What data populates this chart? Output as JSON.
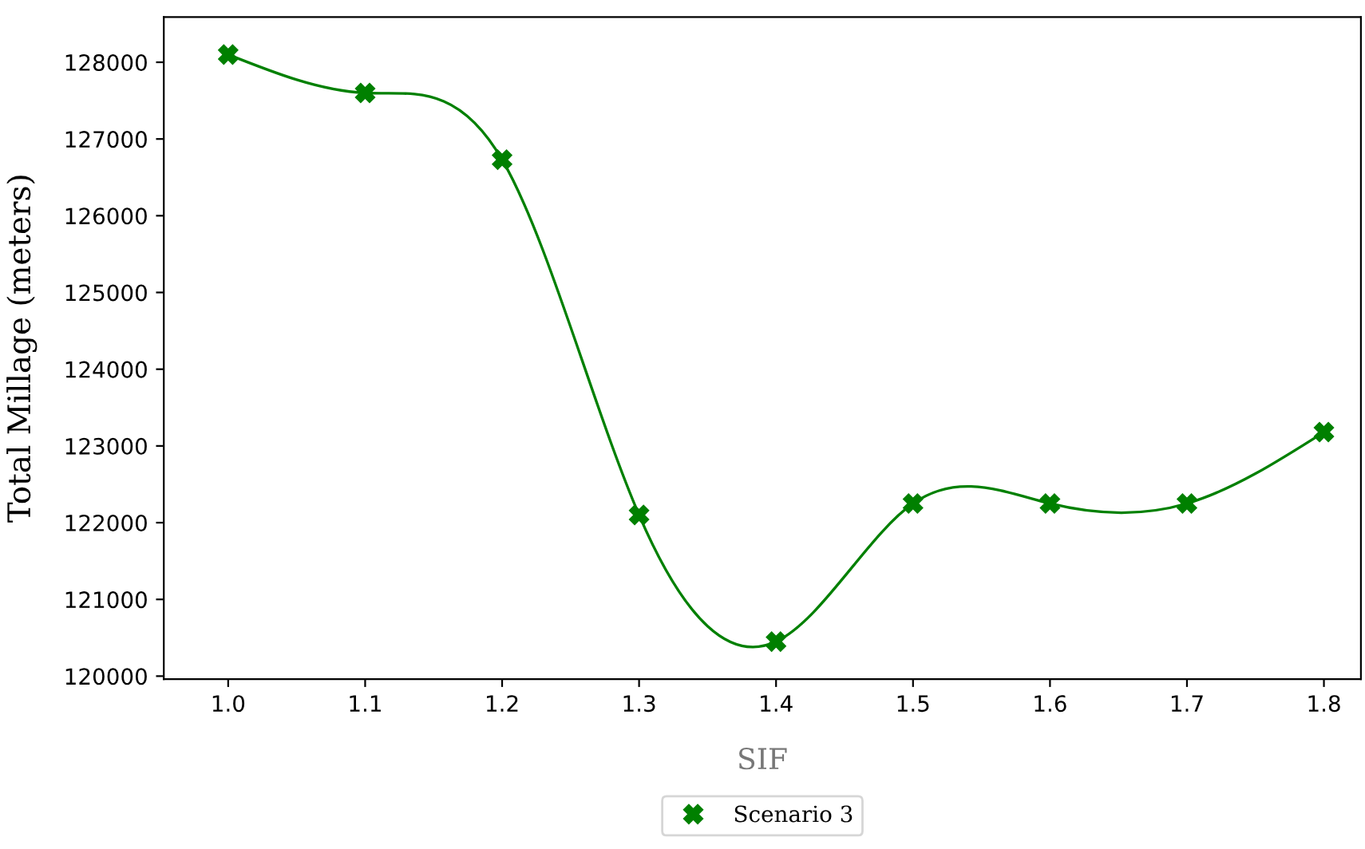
{
  "chart_data": {
    "type": "line",
    "xlabel": "SIF",
    "ylabel": "Total Millage (meters)",
    "x": [
      1.0,
      1.1,
      1.2,
      1.3,
      1.4,
      1.5,
      1.6,
      1.7,
      1.8
    ],
    "series": [
      {
        "name": "Scenario 3",
        "color": "#008000",
        "values": [
          128100,
          127600,
          126730,
          122100,
          120450,
          122250,
          122250,
          122250,
          123180
        ]
      }
    ],
    "xlim": [
      0.953,
      1.827
    ],
    "xticks": [
      {
        "value": 1.0,
        "label": "1.0"
      },
      {
        "value": 1.1,
        "label": "1.1"
      },
      {
        "value": 1.2,
        "label": "1.2"
      },
      {
        "value": 1.3,
        "label": "1.3"
      },
      {
        "value": 1.4,
        "label": "1.4"
      },
      {
        "value": 1.5,
        "label": "1.5"
      },
      {
        "value": 1.6,
        "label": "1.6"
      },
      {
        "value": 1.7,
        "label": "1.7"
      },
      {
        "value": 1.8,
        "label": "1.8"
      }
    ],
    "ylim": [
      119960,
      128590
    ],
    "yticks": [
      120000,
      121000,
      122000,
      123000,
      124000,
      125000,
      126000,
      127000,
      128000
    ],
    "marker": "cross",
    "line_style": "solid",
    "grid": false,
    "legend": "bottom"
  }
}
